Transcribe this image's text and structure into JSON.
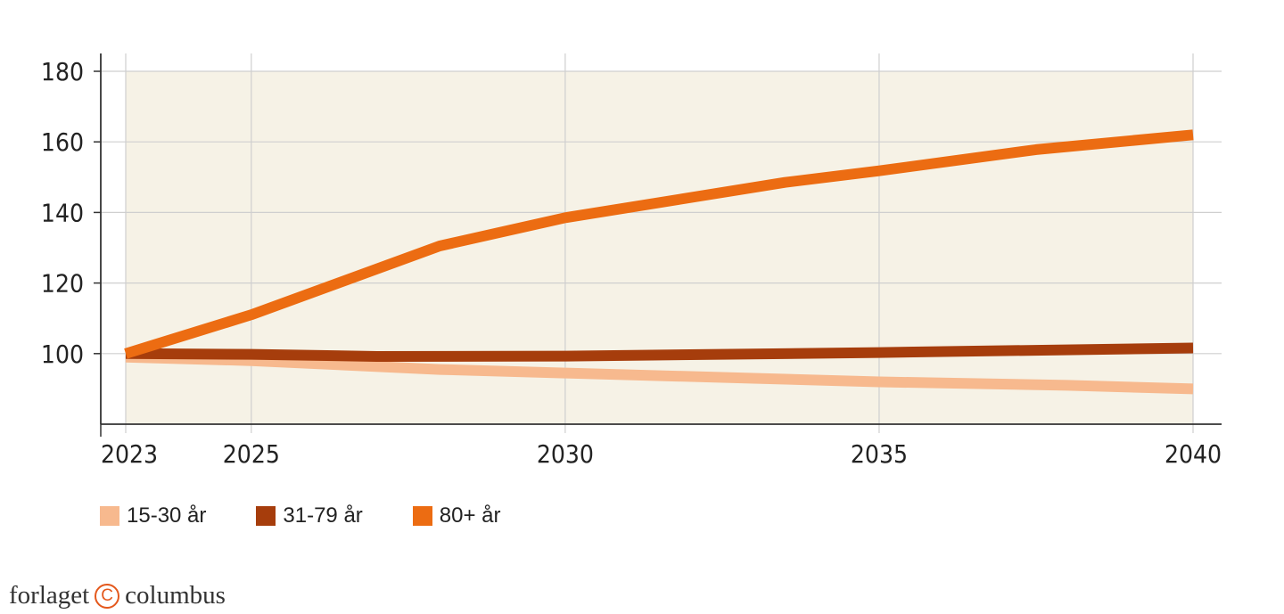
{
  "chart_data": {
    "type": "line",
    "title": "",
    "xlabel": "",
    "ylabel": "",
    "x_ticks": [
      2023,
      2025,
      2030,
      2035,
      2040
    ],
    "y_ticks": [
      180,
      160,
      140,
      120,
      100
    ],
    "xlim": [
      2023,
      2040
    ],
    "ylim": [
      80,
      180
    ],
    "grid": true,
    "series": [
      {
        "name": "15-30 år",
        "color": "#f7b98e",
        "points": [
          [
            2023,
            99
          ],
          [
            2025,
            98
          ],
          [
            2028,
            95.5
          ],
          [
            2030,
            94.5
          ],
          [
            2033,
            93
          ],
          [
            2035,
            92
          ],
          [
            2038,
            91
          ],
          [
            2040,
            90
          ]
        ]
      },
      {
        "name": "31-79 år",
        "color": "#a63d0c",
        "points": [
          [
            2023,
            100
          ],
          [
            2025,
            99.8
          ],
          [
            2027,
            99.2
          ],
          [
            2030,
            99.3
          ],
          [
            2035,
            100.3
          ],
          [
            2040,
            101.6
          ]
        ]
      },
      {
        "name": "80+ år",
        "color": "#ec6c12",
        "points": [
          [
            2023,
            100
          ],
          [
            2025,
            111
          ],
          [
            2028,
            130.5
          ],
          [
            2030,
            138.5
          ],
          [
            2033.5,
            148.5
          ],
          [
            2035,
            151.8
          ],
          [
            2037.5,
            157.8
          ],
          [
            2040,
            162
          ]
        ]
      }
    ],
    "legend_position": "bottom-left"
  },
  "legend": {
    "items": [
      {
        "label": "15-30 år",
        "color": "#f7b98e"
      },
      {
        "label": "31-79 år",
        "color": "#a63d0c"
      },
      {
        "label": "80+ år",
        "color": "#ec6c12"
      }
    ]
  },
  "logo": {
    "left": "forlaget",
    "mark": "C",
    "right": "columbus"
  }
}
